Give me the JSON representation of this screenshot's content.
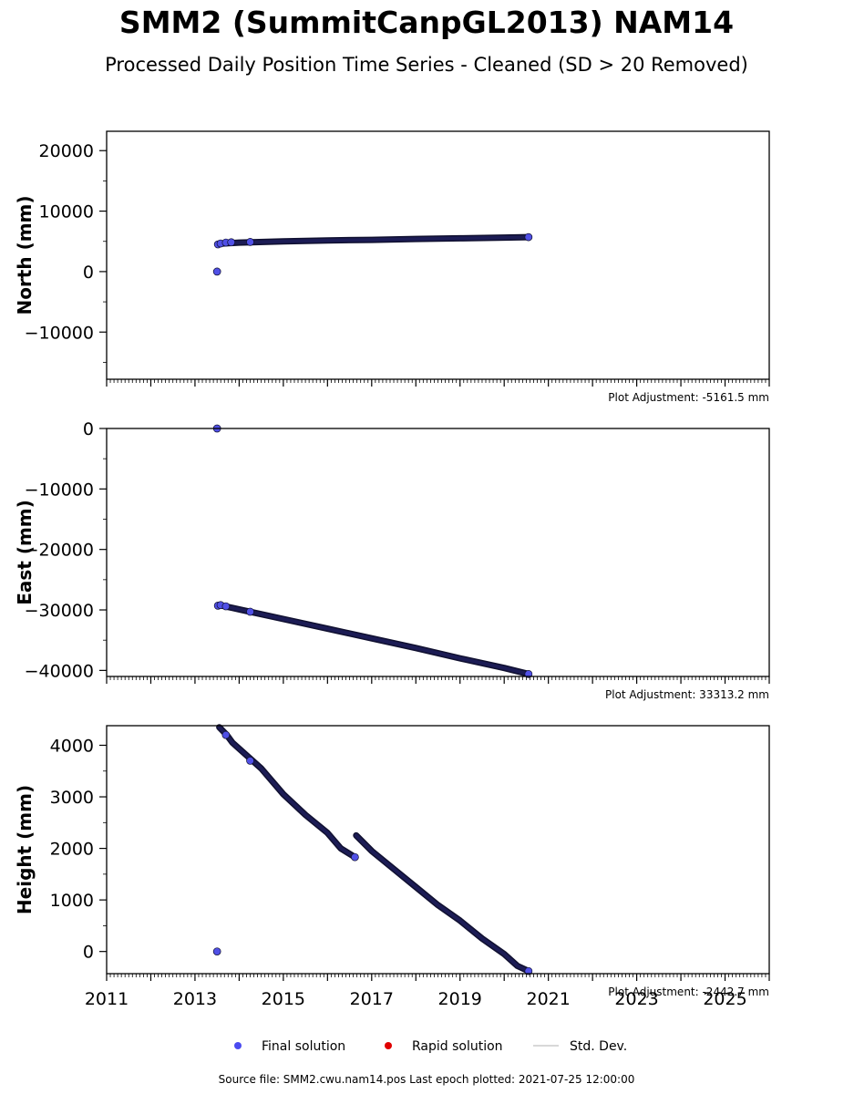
{
  "title": "SMM2 (SummitCanpGL2013) NAM14",
  "subtitle": "Processed Daily Position Time Series - Cleaned (SD > 20 Removed)",
  "legend": [
    {
      "label": "Final solution",
      "color": "#4b4bf0",
      "kind": "dot"
    },
    {
      "label": "Rapid solution",
      "color": "#e00000",
      "kind": "dot"
    },
    {
      "label": "Std. Dev.",
      "color": "#cccccc",
      "kind": "line"
    }
  ],
  "source_text": "Source file: SMM2.cwu.nam14.pos  Last epoch plotted: 2021-07-25 12:00:00",
  "colors": {
    "final_fill": "#5050e6",
    "final_edge": "#101030",
    "axes": "#000000"
  },
  "chart_data": [
    {
      "type": "scatter",
      "ylabel": "North (mm)",
      "adjustment": "Plot Adjustment: -5161.5 mm",
      "xlim": [
        2011,
        2026
      ],
      "ylim": [
        -17800,
        23200
      ],
      "yticks": [
        -10000,
        0,
        10000,
        20000
      ],
      "xtick_labels_shown": false,
      "series": [
        {
          "points": [
            [
              2013.5,
              0
            ],
            [
              2013.52,
              4500
            ],
            [
              2013.58,
              4650
            ],
            [
              2013.7,
              4800
            ],
            [
              2013.82,
              4850
            ],
            [
              2014.25,
              4900
            ]
          ],
          "line": [
            [
              2013.55,
              4600
            ],
            [
              2014.0,
              4800
            ],
            [
              2015.0,
              5000
            ],
            [
              2016.0,
              5150
            ],
            [
              2017.0,
              5250
            ],
            [
              2018.0,
              5400
            ],
            [
              2019.0,
              5500
            ],
            [
              2020.0,
              5620
            ],
            [
              2020.55,
              5700
            ]
          ],
          "endpoints": [
            [
              2020.55,
              5700
            ]
          ]
        }
      ]
    },
    {
      "type": "scatter",
      "ylabel": "East (mm)",
      "adjustment": "Plot Adjustment: 33313.2 mm",
      "xlim": [
        2011,
        2026
      ],
      "ylim": [
        -41000,
        0
      ],
      "yticks": [
        -40000,
        -30000,
        -20000,
        -10000,
        0
      ],
      "xtick_labels_shown": false,
      "series": [
        {
          "points": [
            [
              2013.5,
              0
            ],
            [
              2013.52,
              -29300
            ],
            [
              2013.58,
              -29200
            ],
            [
              2013.7,
              -29400
            ],
            [
              2014.25,
              -30300
            ]
          ],
          "line": [
            [
              2013.55,
              -29200
            ],
            [
              2014.0,
              -29900
            ],
            [
              2015.0,
              -31500
            ],
            [
              2016.0,
              -33100
            ],
            [
              2017.0,
              -34700
            ],
            [
              2018.0,
              -36300
            ],
            [
              2019.0,
              -38000
            ],
            [
              2020.0,
              -39600
            ],
            [
              2020.55,
              -40600
            ]
          ],
          "endpoints": [
            [
              2020.55,
              -40600
            ]
          ]
        }
      ]
    },
    {
      "type": "scatter",
      "ylabel": "Height (mm)",
      "adjustment": "Plot Adjustment: -2442.7 mm",
      "xlim": [
        2011,
        2026
      ],
      "ylim": [
        -430,
        4380
      ],
      "yticks": [
        0,
        1000,
        2000,
        3000,
        4000
      ],
      "xticks": [
        2011,
        2013,
        2015,
        2017,
        2019,
        2021,
        2023,
        2025
      ],
      "xtick_labels_shown": true,
      "series": [
        {
          "points": [
            [
              2013.5,
              0
            ],
            [
              2013.7,
              4200
            ],
            [
              2014.25,
              3700
            ],
            [
              2016.62,
              1830
            ]
          ],
          "line": [
            [
              2013.55,
              4350
            ],
            [
              2013.72,
              4200
            ],
            [
              2013.85,
              4050
            ],
            [
              2014.5,
              3550
            ],
            [
              2015.0,
              3050
            ],
            [
              2015.5,
              2650
            ],
            [
              2016.0,
              2300
            ],
            [
              2016.3,
              2000
            ],
            [
              2016.62,
              1830
            ]
          ],
          "line2": [
            [
              2016.65,
              2250
            ],
            [
              2017.0,
              1950
            ],
            [
              2017.5,
              1600
            ],
            [
              2018.0,
              1250
            ],
            [
              2018.5,
              900
            ],
            [
              2019.0,
              600
            ],
            [
              2019.5,
              250
            ],
            [
              2020.0,
              -50
            ],
            [
              2020.3,
              -280
            ],
            [
              2020.55,
              -380
            ]
          ],
          "endpoints": [
            [
              2020.55,
              -380
            ]
          ]
        }
      ]
    }
  ]
}
